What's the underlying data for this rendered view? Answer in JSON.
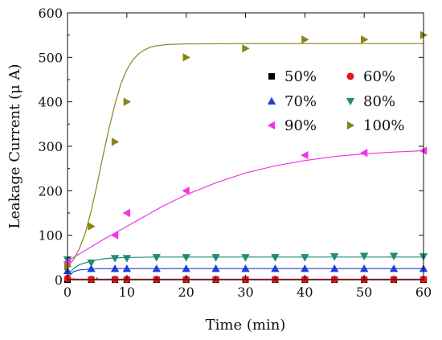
{
  "chart_data": {
    "type": "scatter",
    "title": "",
    "xlabel": "Time (min)",
    "ylabel": "Leakage Current (μ A)",
    "xlim": [
      0,
      60
    ],
    "ylim": [
      0,
      600
    ],
    "xticks": [
      0,
      10,
      20,
      30,
      40,
      50,
      60
    ],
    "yticks": [
      0,
      100,
      200,
      300,
      400,
      500,
      600
    ],
    "grid": false,
    "legend_position": "top-right",
    "series": [
      {
        "name": "50%",
        "color": "#000000",
        "marker": "square",
        "x": [
          0,
          4,
          8,
          10,
          15,
          20,
          25,
          30,
          35,
          40,
          45,
          50,
          55,
          60
        ],
        "y": [
          0,
          0,
          0,
          0,
          0,
          0,
          0,
          0,
          0,
          0,
          0,
          0,
          0,
          0
        ],
        "fit": [
          [
            0,
            0
          ],
          [
            60,
            0
          ]
        ]
      },
      {
        "name": "60%",
        "color": "#e8141b",
        "marker": "circle",
        "x": [
          0,
          4,
          8,
          10,
          15,
          20,
          25,
          30,
          35,
          40,
          45,
          50,
          55,
          60
        ],
        "y": [
          3,
          1,
          1,
          1,
          1,
          1,
          1,
          1,
          1,
          1,
          1,
          1,
          1,
          1
        ],
        "fit": [
          [
            0,
            2
          ],
          [
            2,
            1
          ],
          [
            60,
            1
          ]
        ]
      },
      {
        "name": "70%",
        "color": "#1f3fd6",
        "marker": "triangle-up",
        "x": [
          0,
          4,
          8,
          10,
          15,
          20,
          25,
          30,
          35,
          40,
          45,
          50,
          55,
          60
        ],
        "y": [
          20,
          25,
          25,
          25,
          25,
          25,
          25,
          25,
          25,
          25,
          25,
          25,
          25,
          25
        ],
        "fit": [
          [
            0,
            5
          ],
          [
            1,
            18
          ],
          [
            2,
            22
          ],
          [
            4,
            24
          ],
          [
            6,
            25
          ],
          [
            60,
            25
          ]
        ]
      },
      {
        "name": "80%",
        "color": "#1f8a7a",
        "marker": "triangle-down",
        "x": [
          0,
          4,
          8,
          10,
          15,
          20,
          25,
          30,
          35,
          40,
          45,
          50,
          55,
          60
        ],
        "y": [
          45,
          38,
          48,
          48,
          50,
          50,
          50,
          50,
          50,
          50,
          52,
          53,
          53,
          52
        ],
        "fit": [
          [
            0,
            10
          ],
          [
            1,
            25
          ],
          [
            2,
            34
          ],
          [
            4,
            42
          ],
          [
            6,
            47
          ],
          [
            8,
            49
          ],
          [
            10,
            50
          ],
          [
            15,
            51
          ],
          [
            60,
            51
          ]
        ]
      },
      {
        "name": "90%",
        "color": "#ee36e8",
        "marker": "triangle-left",
        "x": [
          0,
          8,
          10,
          20,
          40,
          50,
          60
        ],
        "y": [
          40,
          100,
          150,
          200,
          280,
          285,
          290
        ],
        "fit": [
          [
            0,
            42
          ],
          [
            2,
            58
          ],
          [
            4,
            74
          ],
          [
            6,
            90
          ],
          [
            8,
            105
          ],
          [
            10,
            120
          ],
          [
            12,
            135
          ],
          [
            14,
            150
          ],
          [
            16,
            165
          ],
          [
            18,
            178
          ],
          [
            20,
            191
          ],
          [
            25,
            218
          ],
          [
            30,
            240
          ],
          [
            35,
            256
          ],
          [
            40,
            268
          ],
          [
            45,
            277
          ],
          [
            50,
            283
          ],
          [
            55,
            287
          ],
          [
            60,
            290
          ]
        ]
      },
      {
        "name": "100%",
        "color": "#8a8417",
        "marker": "triangle-right",
        "x": [
          0,
          4,
          8,
          10,
          20,
          30,
          40,
          50,
          60
        ],
        "y": [
          30,
          120,
          310,
          400,
          500,
          520,
          540,
          540,
          550
        ],
        "fit": [
          [
            0,
            30
          ],
          [
            1,
            45
          ],
          [
            2,
            70
          ],
          [
            3,
            105
          ],
          [
            4,
            155
          ],
          [
            5,
            215
          ],
          [
            6,
            280
          ],
          [
            7,
            340
          ],
          [
            8,
            395
          ],
          [
            9,
            440
          ],
          [
            10,
            472
          ],
          [
            11,
            494
          ],
          [
            12,
            508
          ],
          [
            13,
            517
          ],
          [
            14,
            523
          ],
          [
            15,
            526
          ],
          [
            17,
            529
          ],
          [
            20,
            530
          ],
          [
            30,
            531
          ],
          [
            60,
            531
          ]
        ]
      }
    ]
  }
}
